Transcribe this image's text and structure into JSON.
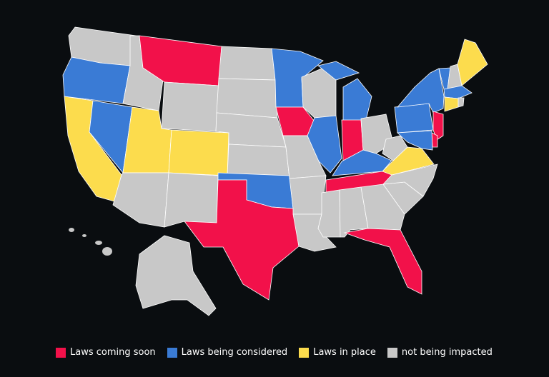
{
  "colors": {
    "coming": "#f2114a",
    "considered": "#3a7bd5",
    "in_place": "#fcdc4d",
    "none": "#c8c8c8",
    "border": "#ffffff",
    "background": "#0a0d10"
  },
  "legend": [
    {
      "key": "coming",
      "label": "Laws coming soon"
    },
    {
      "key": "considered",
      "label": "Laws being considered"
    },
    {
      "key": "in_place",
      "label": "Laws in place"
    },
    {
      "key": "none",
      "label": "not being impacted"
    }
  ],
  "state_status": {
    "WA": "none",
    "OR": "considered",
    "CA": "in_place",
    "NV": "considered",
    "ID": "none",
    "MT": "coming",
    "WY": "none",
    "UT": "in_place",
    "CO": "in_place",
    "AZ": "none",
    "NM": "none",
    "ND": "none",
    "SD": "none",
    "NE": "none",
    "KS": "none",
    "OK": "considered",
    "TX": "coming",
    "MN": "considered",
    "IA": "coming",
    "MO": "none",
    "AR": "none",
    "LA": "none",
    "WI": "none",
    "IL": "considered",
    "MI": "considered",
    "IN": "coming",
    "OH": "none",
    "KY": "considered",
    "TN": "coming",
    "MS": "none",
    "AL": "none",
    "GA": "none",
    "FL": "coming",
    "SC": "none",
    "NC": "none",
    "VA": "in_place",
    "WV": "none",
    "PA": "considered",
    "NY": "considered",
    "NJ": "coming",
    "DE": "coming",
    "MD": "considered",
    "VT": "considered",
    "NH": "none",
    "ME": "in_place",
    "MA": "considered",
    "CT": "in_place",
    "RI": "none",
    "AK": "none",
    "HI": "none"
  }
}
